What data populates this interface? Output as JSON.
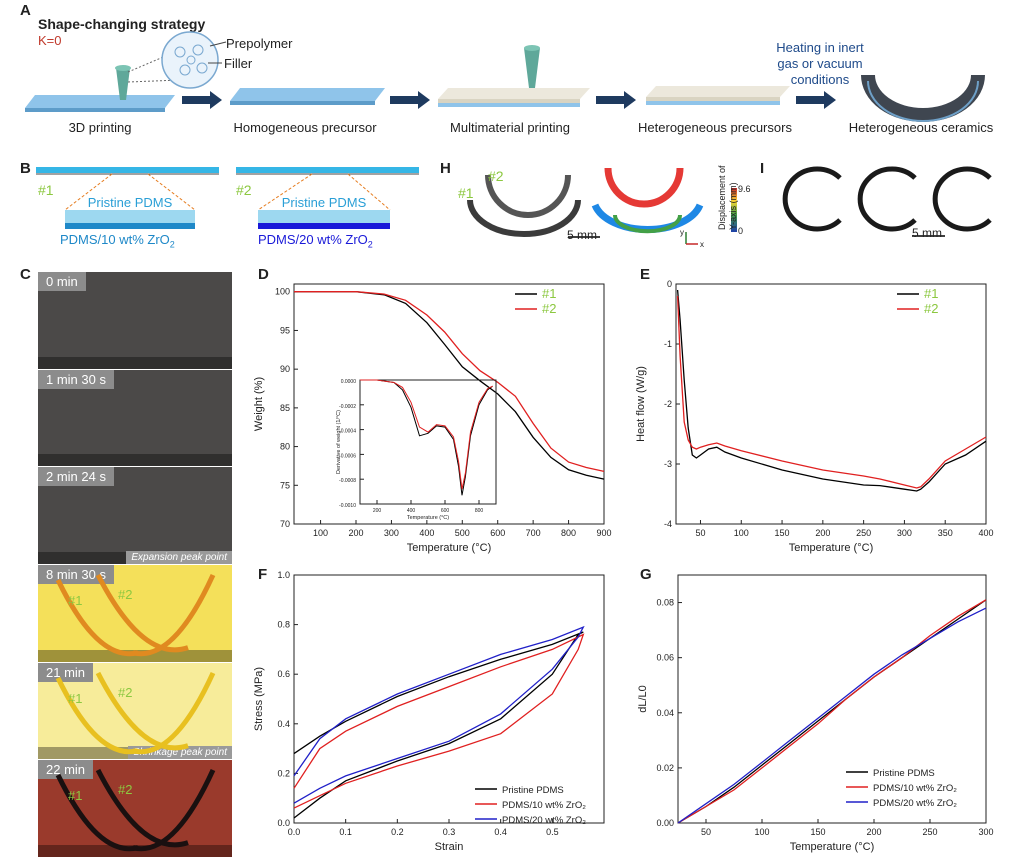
{
  "panels": [
    "A",
    "B",
    "C",
    "D",
    "E",
    "F",
    "G",
    "H",
    "I"
  ],
  "A": {
    "title": "Shape-changing strategy",
    "k": "K=0",
    "prepolymer": "Prepolymer",
    "filler": "Filler",
    "steps": [
      "3D printing",
      "Homogeneous precursor",
      "Multimaterial printing",
      "Heterogeneous precursors",
      "Heterogeneous ceramics"
    ],
    "heating": [
      "Heating in inert",
      "gas or vacuum",
      "conditions"
    ]
  },
  "B": {
    "s1": "#1",
    "s2": "#2",
    "pristine": "Pristine PDMS",
    "comp1": "PDMS/10 wt% ZrO",
    "comp2": "PDMS/20 wt% ZrO",
    "sub": "2"
  },
  "C": {
    "frames": [
      {
        "time": "0 min",
        "color": "#4b4948"
      },
      {
        "time": "1 min 30 s",
        "color": "#4b4948"
      },
      {
        "time": "2 min 24 s",
        "color": "#4b4948",
        "note": "Expansion peak point"
      },
      {
        "time": "8 min 30 s",
        "color": "#f4e05a"
      },
      {
        "time": "21 min",
        "color": "#f7ec9a",
        "note": "Shrinkage peak point"
      },
      {
        "time": "22 min",
        "color": "#9a3a2c"
      }
    ],
    "s1": "#1",
    "s2": "#2"
  },
  "H": {
    "s1": "#1",
    "s2": "#2",
    "scale": "5 mm",
    "cbar_title": [
      "Displacement of",
      "Y-axis (mm)"
    ],
    "cbar_max": "9.6",
    "cbar_min": "0",
    "axis_y": "y",
    "axis_x": "x"
  },
  "I": {
    "scale": "5 mm"
  },
  "chart_data": [
    {
      "panel": "D",
      "type": "line",
      "xlabel": "Temperature (°C)",
      "ylabel": "Weight (%)",
      "xlim": [
        25,
        900
      ],
      "ylim": [
        70,
        101
      ],
      "xticks": [
        100,
        200,
        300,
        400,
        500,
        600,
        700,
        800,
        900
      ],
      "yticks": [
        70,
        75,
        80,
        85,
        90,
        95,
        100
      ],
      "series": [
        {
          "name": "#1",
          "color": "#000000",
          "x": [
            25,
            200,
            280,
            340,
            400,
            450,
            500,
            550,
            600,
            650,
            700,
            750,
            800,
            850,
            900
          ],
          "y": [
            100,
            100,
            99.6,
            98.5,
            96,
            93.2,
            90.3,
            88.5,
            86.8,
            84.5,
            81.2,
            78.6,
            77,
            76.3,
            75.8
          ]
        },
        {
          "name": "#2",
          "color": "#e02020",
          "x": [
            25,
            200,
            280,
            340,
            400,
            450,
            500,
            550,
            600,
            650,
            700,
            750,
            800,
            850,
            900
          ],
          "y": [
            100,
            100,
            99.7,
            98.9,
            97,
            94.8,
            92,
            89.8,
            88.3,
            86.5,
            83,
            79.8,
            78,
            77.3,
            76.8
          ]
        }
      ],
      "inset": {
        "xlabel": "Temperature (°C)",
        "ylabel": "Derivative of weight (1/°C)",
        "xlim": [
          100,
          900
        ],
        "ylim": [
          -0.001,
          0
        ],
        "xticks": [
          200,
          400,
          600,
          800
        ],
        "yticks": [
          0.0,
          -0.0002,
          -0.0004,
          -0.0006,
          -0.0008,
          -0.001
        ],
        "ytick_labels": [
          "0.0000",
          "-0.0002",
          "-0.0004",
          "-0.0006",
          "-0.0008",
          "-0.0010"
        ],
        "series": [
          {
            "name": "#1",
            "color": "#000000",
            "x": [
              100,
              200,
              300,
              350,
              400,
              450,
              500,
              550,
              600,
              650,
              680,
              700,
              720,
              750,
              800,
              850,
              880
            ],
            "y": [
              0,
              0,
              -2e-05,
              -8e-05,
              -0.00022,
              -0.00045,
              -0.00043,
              -0.00037,
              -0.00038,
              -0.00048,
              -0.0007,
              -0.00093,
              -0.00078,
              -0.00045,
              -0.0002,
              -8e-05,
              -5e-05
            ]
          },
          {
            "name": "#2",
            "color": "#e02020",
            "x": [
              100,
              200,
              300,
              350,
              400,
              450,
              500,
              550,
              600,
              650,
              680,
              700,
              720,
              750,
              800,
              850,
              880
            ],
            "y": [
              0,
              0,
              -2e-05,
              -6e-05,
              -0.00018,
              -0.00038,
              -0.00042,
              -0.00036,
              -0.00037,
              -0.00046,
              -0.00066,
              -0.00088,
              -0.00075,
              -0.00042,
              -0.00018,
              -7e-05,
              -5e-05
            ]
          }
        ]
      }
    },
    {
      "panel": "E",
      "type": "line",
      "xlabel": "Temperature (°C)",
      "ylabel": "Heat flow (W/g)",
      "xlim": [
        20,
        400
      ],
      "ylim": [
        -4,
        0
      ],
      "xticks": [
        50,
        100,
        150,
        200,
        250,
        300,
        350,
        400
      ],
      "yticks": [
        -4,
        -3,
        -2,
        -1,
        0
      ],
      "series": [
        {
          "name": "#1",
          "color": "#000000",
          "x": [
            22,
            25,
            30,
            35,
            40,
            45,
            50,
            60,
            70,
            80,
            100,
            150,
            200,
            250,
            270,
            300,
            315,
            320,
            330,
            350,
            375,
            400
          ],
          "y": [
            -0.1,
            -0.6,
            -1.6,
            -2.4,
            -2.85,
            -2.9,
            -2.85,
            -2.75,
            -2.72,
            -2.8,
            -2.9,
            -3.1,
            -3.25,
            -3.35,
            -3.36,
            -3.42,
            -3.45,
            -3.42,
            -3.3,
            -3.0,
            -2.85,
            -2.62
          ]
        },
        {
          "name": "#2",
          "color": "#e02020",
          "x": [
            22,
            25,
            30,
            35,
            40,
            45,
            50,
            60,
            70,
            80,
            100,
            150,
            200,
            250,
            270,
            300,
            315,
            320,
            330,
            350,
            375,
            400
          ],
          "y": [
            -0.2,
            -1.2,
            -2.3,
            -2.6,
            -2.72,
            -2.75,
            -2.72,
            -2.68,
            -2.65,
            -2.7,
            -2.78,
            -2.95,
            -3.1,
            -3.2,
            -3.25,
            -3.35,
            -3.4,
            -3.38,
            -3.25,
            -2.95,
            -2.75,
            -2.55
          ]
        }
      ]
    },
    {
      "panel": "F",
      "type": "line",
      "xlabel": "Strain",
      "ylabel": "Stress (MPa)",
      "xlim": [
        0,
        0.6
      ],
      "ylim": [
        0,
        1.0
      ],
      "xticks": [
        0.0,
        0.1,
        0.2,
        0.3,
        0.4,
        0.5
      ],
      "yticks": [
        0.0,
        0.2,
        0.4,
        0.6,
        0.8,
        1.0
      ],
      "xtick_labels": [
        "0.0",
        "0.1",
        "0.2",
        "0.3",
        "0.4",
        "0.5"
      ],
      "ytick_labels": [
        "0.0",
        "0.2",
        "0.4",
        "0.6",
        "0.8",
        "1.0"
      ],
      "series": [
        {
          "name": "Pristine PDMS",
          "color": "#000000",
          "x": [
            0,
            0.05,
            0.1,
            0.2,
            0.3,
            0.4,
            0.5,
            0.55,
            0.56,
            0.5,
            0.4,
            0.3,
            0.2,
            0.1,
            0.05,
            0.0
          ],
          "y": [
            0.02,
            0.1,
            0.17,
            0.25,
            0.32,
            0.42,
            0.6,
            0.76,
            0.77,
            0.72,
            0.66,
            0.59,
            0.51,
            0.41,
            0.35,
            0.28
          ]
        },
        {
          "name": "PDMS/10 wt% ZrO₂",
          "color": "#e02020",
          "x": [
            0,
            0.05,
            0.1,
            0.2,
            0.3,
            0.4,
            0.5,
            0.55,
            0.56,
            0.5,
            0.4,
            0.3,
            0.2,
            0.1,
            0.05,
            0.0
          ],
          "y": [
            0.06,
            0.11,
            0.16,
            0.23,
            0.29,
            0.36,
            0.52,
            0.7,
            0.76,
            0.7,
            0.63,
            0.55,
            0.47,
            0.37,
            0.3,
            0.14
          ]
        },
        {
          "name": "PDMS/20 wt% ZrO₂",
          "color": "#2020c8",
          "x": [
            0,
            0.05,
            0.1,
            0.2,
            0.3,
            0.4,
            0.5,
            0.55,
            0.56,
            0.5,
            0.4,
            0.3,
            0.2,
            0.1,
            0.05,
            0.0
          ],
          "y": [
            0.08,
            0.14,
            0.19,
            0.26,
            0.33,
            0.44,
            0.62,
            0.75,
            0.79,
            0.74,
            0.68,
            0.6,
            0.52,
            0.42,
            0.34,
            0.19
          ]
        }
      ]
    },
    {
      "panel": "G",
      "type": "line",
      "xlabel": "Temperature (°C)",
      "ylabel": "dL/L0",
      "xlim": [
        25,
        300
      ],
      "ylim": [
        0,
        0.09
      ],
      "xticks": [
        50,
        100,
        150,
        200,
        250,
        300
      ],
      "yticks": [
        0.0,
        0.02,
        0.04,
        0.06,
        0.08
      ],
      "ytick_labels": [
        "0.00",
        "0.02",
        "0.04",
        "0.06",
        "0.08"
      ],
      "series": [
        {
          "name": "Pristine PDMS",
          "color": "#000000",
          "x": [
            25,
            50,
            75,
            100,
            125,
            150,
            175,
            200,
            225,
            250,
            275,
            300
          ],
          "y": [
            0,
            0.006,
            0.013,
            0.021,
            0.029,
            0.037,
            0.045,
            0.053,
            0.06,
            0.067,
            0.074,
            0.081
          ]
        },
        {
          "name": "PDMS/10 wt% ZrO₂",
          "color": "#e02020",
          "x": [
            25,
            50,
            75,
            100,
            125,
            150,
            175,
            200,
            225,
            250,
            275,
            300
          ],
          "y": [
            0,
            0.006,
            0.012,
            0.02,
            0.028,
            0.036,
            0.045,
            0.053,
            0.06,
            0.068,
            0.075,
            0.081
          ]
        },
        {
          "name": "PDMS/20 wt% ZrO₂",
          "color": "#2020c8",
          "x": [
            25,
            50,
            75,
            100,
            125,
            150,
            175,
            200,
            225,
            250,
            275,
            300
          ],
          "y": [
            0,
            0.007,
            0.014,
            0.022,
            0.03,
            0.038,
            0.046,
            0.054,
            0.061,
            0.067,
            0.073,
            0.078
          ]
        }
      ]
    }
  ]
}
